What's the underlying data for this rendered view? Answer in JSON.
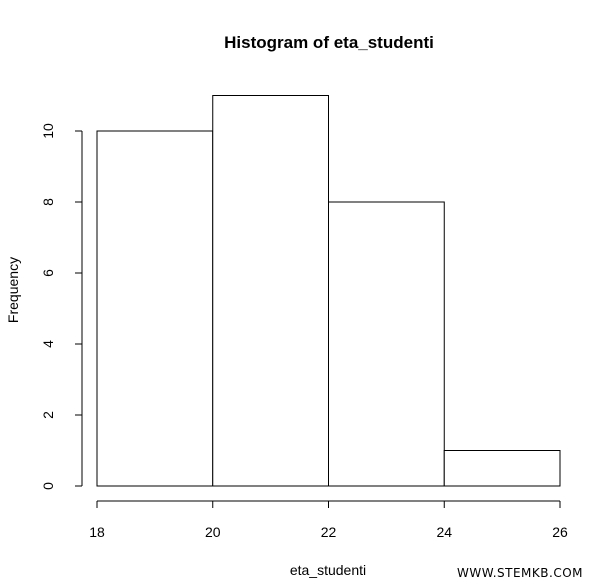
{
  "chart_data": {
    "type": "bar",
    "title": "Histogram of eta_studenti",
    "xlabel": "eta_studenti",
    "ylabel": "Frequency",
    "bins": [
      {
        "from": 18,
        "to": 20,
        "count": 10
      },
      {
        "from": 20,
        "to": 22,
        "count": 11
      },
      {
        "from": 22,
        "to": 24,
        "count": 8
      },
      {
        "from": 24,
        "to": 26,
        "count": 1
      }
    ],
    "xlim": [
      18,
      26
    ],
    "ylim": [
      0,
      11
    ],
    "x_ticks": [
      "18",
      "20",
      "22",
      "24",
      "26"
    ],
    "y_ticks": [
      "0",
      "2",
      "4",
      "6",
      "8",
      "10"
    ],
    "grid": false,
    "bar_fill": "#ffffff",
    "bar_stroke": "#000000"
  },
  "watermark": "WWW.STEMKB.COM"
}
